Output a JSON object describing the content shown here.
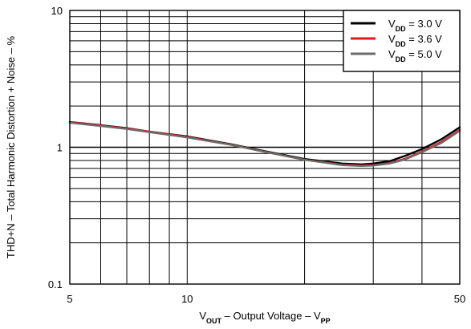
{
  "chart_data": {
    "type": "line",
    "xscale": "log",
    "yscale": "log",
    "xlim": [
      5,
      50
    ],
    "ylim": [
      0.1,
      10
    ],
    "grid": true,
    "legend_position": "top-right",
    "xlabel": {
      "main": "V",
      "sub": "OUT",
      "rest": " – Output Voltage – V",
      "sub2": "PP"
    },
    "ylabel": "THD+N – Total Harmonic Distortion + Noise – %",
    "x_tick_labels": [
      {
        "value": 5,
        "label": "5"
      },
      {
        "value": 10,
        "label": "10"
      },
      {
        "value": 50,
        "label": "50"
      }
    ],
    "y_tick_labels": [
      {
        "value": 0.1,
        "label": "0.1"
      },
      {
        "value": 1,
        "label": "1"
      },
      {
        "value": 10,
        "label": "10"
      }
    ],
    "series": [
      {
        "name": {
          "main": "V",
          "sub": "DD",
          "rest": " = 3.0 V"
        },
        "color": "#000000",
        "x": [
          5,
          6,
          7,
          8,
          10,
          13,
          16,
          20,
          25,
          28,
          30,
          33,
          36,
          40,
          45,
          50
        ],
        "y": [
          1.53,
          1.45,
          1.38,
          1.3,
          1.2,
          1.05,
          0.93,
          0.82,
          0.76,
          0.75,
          0.76,
          0.79,
          0.86,
          0.97,
          1.15,
          1.4
        ]
      },
      {
        "name": {
          "main": "V",
          "sub": "DD",
          "rest": " = 3.6 V"
        },
        "color": "#e8141c",
        "x": [
          5,
          6,
          7,
          8,
          10,
          13,
          16,
          20,
          25,
          28,
          30,
          33,
          36,
          40,
          45,
          50
        ],
        "y": [
          1.52,
          1.44,
          1.37,
          1.3,
          1.19,
          1.04,
          0.92,
          0.81,
          0.745,
          0.735,
          0.74,
          0.765,
          0.82,
          0.93,
          1.1,
          1.34
        ]
      },
      {
        "name": {
          "main": "V",
          "sub": "DD",
          "rest": " = 5.0 V"
        },
        "color": "#6b6b6b",
        "x": [
          5,
          6,
          7,
          8,
          10,
          13,
          16,
          20,
          25,
          28,
          30,
          33,
          36,
          40,
          45,
          50
        ],
        "y": [
          1.51,
          1.43,
          1.36,
          1.29,
          1.18,
          1.04,
          0.92,
          0.81,
          0.74,
          0.73,
          0.735,
          0.76,
          0.81,
          0.92,
          1.08,
          1.32
        ]
      }
    ]
  }
}
